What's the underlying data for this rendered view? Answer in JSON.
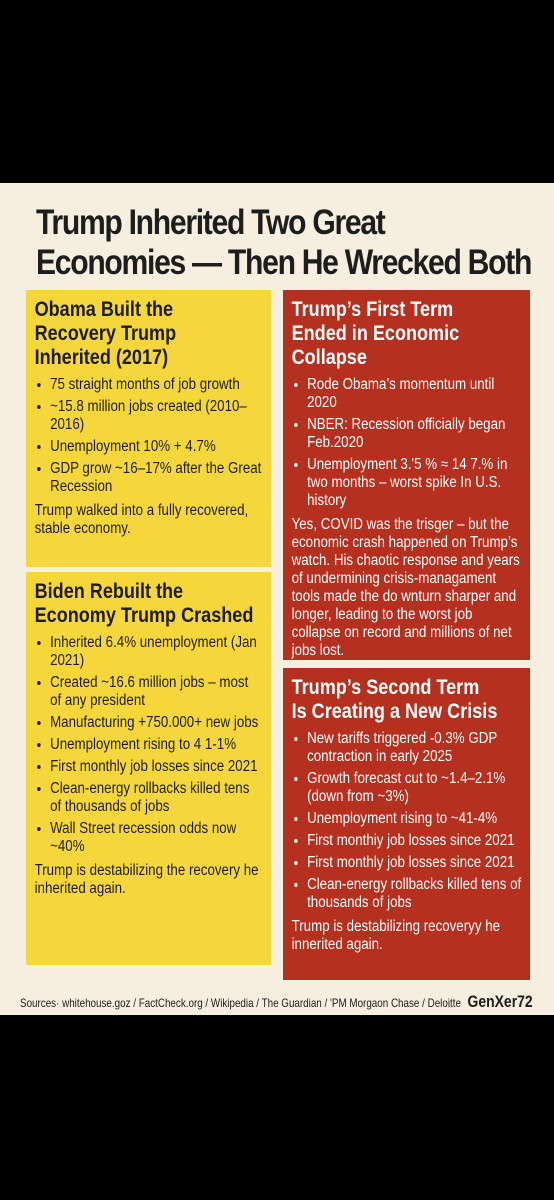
{
  "title_lines": [
    "Trump Inherited Two Great",
    "Economies — Then He Wrecked Both"
  ],
  "panels": [
    {
      "heading": [
        "Obama Built the",
        "Recovery Trump",
        "Inherited (2017)"
      ],
      "bullets": [
        "75 straight months of job growth",
        "~15.8 million jobs created (2010–2016)",
        "Unemployment 10% + 4.7%",
        "GDP grow ~16–17% after the Great Recession"
      ],
      "note": "Trump walked into a fully recovered, stable economy."
    },
    {
      "heading": [
        "Biden Rebuilt the",
        "Economy Trump Crashed"
      ],
      "bullets": [
        "Inherited 6.4% unemployment (Jan 2021)",
        "Created ~16.6 million jobs – most of any president",
        "Manufacturing +750.000+ new jobs",
        "Unemployment rising to 4 1-1%",
        "First monthly job losses since 2021",
        "Clean-energy rollbacks killed tens of thousands of jobs",
        "Wall Street recession odds now ~40%"
      ],
      "note": "Trump is destabilizing the recovery he inherited again."
    },
    {
      "heading": [
        "Trump’s First Term",
        "Ended in Economic Collapse"
      ],
      "bullets": [
        "Rode Obama’s momentum until 2020",
        "NBER: Recession officially began Feb.2020",
        "Unemployment 3.'5 % ≈ 14 7.% in two months – worst spike In U.S. history"
      ],
      "note": "Yes, COVID was the trisger – but the economic crash happened on Trump’s watch. His chaotic response and years of undermining crisis-managament tools made the do wnturn sharper and longer, leading to the worst job collapse on record and millions of net jobs lost."
    },
    {
      "heading": [
        "Trump’s Second Term",
        "Is Creating a New Crisis"
      ],
      "bullets": [
        "New tariffs triggered -0.3% GDP contraction in early 2025",
        "Growth forecast cut to ~1.4–2.1% (down from ~3%)",
        "Unemployment rising to ~41-4%",
        "First monthiy job losses since 2021",
        "First monthly job losses since 2021",
        "Clean-energy rollbacks killed tens of thousands of jobs"
      ],
      "note": "Trump is destabilizing recoveryy he innerited again."
    }
  ],
  "sources": [
    "Sources· whitehouse.goz",
    "FactCheck.org",
    "Wikipedia",
    "The Guardian",
    "'PM Morgaon Chase",
    "Deloitte"
  ],
  "signature": "GenXer72"
}
